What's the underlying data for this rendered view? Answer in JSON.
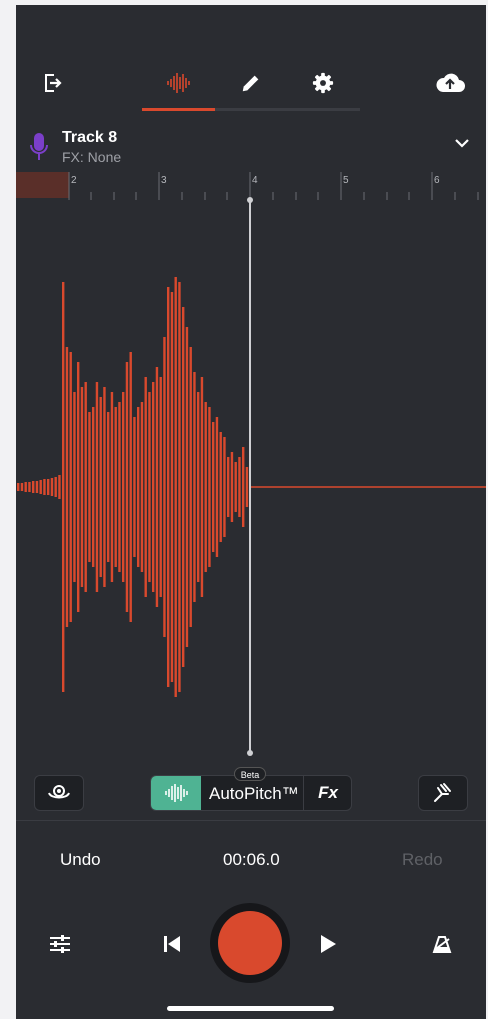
{
  "nav": {
    "exit_icon": "exit-icon",
    "tabs": [
      {
        "icon": "waveform-icon",
        "active": true
      },
      {
        "icon": "pencil-icon",
        "active": false
      },
      {
        "icon": "gear-icon",
        "active": false
      }
    ],
    "upload_icon": "cloud-upload-icon"
  },
  "track": {
    "name": "Track 8",
    "fx": "FX: None",
    "mic_color": "#7b3fc9"
  },
  "ruler": {
    "labels": [
      "2",
      "3",
      "4",
      "5",
      "6"
    ]
  },
  "toolbar": {
    "autopitch_label": "AutoPitch™",
    "beta_label": "Beta",
    "fx_label": "Fx"
  },
  "transport": {
    "undo_label": "Undo",
    "time": "00:06.0",
    "redo_label": "Redo"
  },
  "colors": {
    "accent": "#d9492d",
    "wave": "#d9492d",
    "autopitch": "#4fb393",
    "background": "#2a2c31"
  }
}
